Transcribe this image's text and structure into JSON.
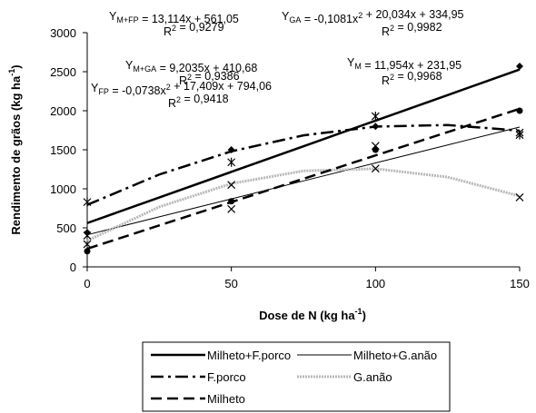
{
  "chart_data": {
    "type": "scatter",
    "x_label": {
      "text": "Dose de N (kg ha",
      "sup": "-1",
      "end": ")"
    },
    "y_label": {
      "text": "Rendimento de grãos (kg ha",
      "sup": "-1",
      "end": ")"
    },
    "x": [
      0,
      50,
      100,
      150
    ],
    "fit_x": [
      0,
      25,
      50,
      75,
      100,
      125,
      150
    ],
    "xlim": [
      0,
      150
    ],
    "xticks": [
      0,
      50,
      100,
      150
    ],
    "ylim": [
      0,
      3000
    ],
    "yticks": [
      0,
      500,
      1000,
      1500,
      2000,
      2500,
      3000
    ],
    "series": [
      {
        "name": "Milheto+F.porco",
        "color": "#000000",
        "line_style": "solid",
        "marker": "diamond",
        "values": [
          440,
          1500,
          1800,
          2570
        ],
        "fit": [
          561.05,
          888.9,
          1216.8,
          1544.6,
          1872.5,
          2200.3,
          2528.1
        ]
      },
      {
        "name": "Milheto+G.anão",
        "color": "#000000",
        "line_style": "thin",
        "marker": "cross",
        "values": [
          400,
          740,
          1550,
          1720
        ],
        "fit": [
          410.7,
          640.8,
          870.9,
          1101.0,
          1331.0,
          1561.1,
          1791.2
        ]
      },
      {
        "name": "F.porco",
        "color": "#000000",
        "line_style": "dashdot",
        "marker": "asterisk",
        "values": [
          830,
          1340,
          1930,
          1690
        ],
        "fit": [
          794.1,
          1183.2,
          1480.0,
          1684.6,
          1797.0,
          1817.1,
          1744.9
        ]
      },
      {
        "name": "G.anão",
        "color": "#b8b8b8",
        "line_style": "dotted",
        "marker": "cross",
        "values": [
          290,
          1050,
          1260,
          890
        ],
        "fit": [
          335.0,
          768.2,
          1066.4,
          1229.4,
          1257.4,
          1150.1,
          907.8
        ]
      },
      {
        "name": "Milheto",
        "color": "#000000",
        "line_style": "dashed",
        "marker": "circle",
        "values": [
          200,
          840,
          1500,
          2000
        ],
        "fit": [
          232.0,
          530.8,
          829.7,
          1128.5,
          1427.4,
          1726.2,
          2025.1
        ]
      }
    ],
    "annotations": [
      {
        "eq": [
          {
            "text": "Y"
          },
          {
            "sub": "M+FP"
          },
          {
            "text": " = 13,114x + 561,05"
          }
        ],
        "r2": [
          {
            "text": "R"
          },
          {
            "sup": "2"
          },
          {
            "text": " = 0,9279"
          }
        ]
      },
      {
        "eq": [
          {
            "text": "Y"
          },
          {
            "sub": "GA"
          },
          {
            "text": " = -0,1081x"
          },
          {
            "sup": "2"
          },
          {
            "text": " + 20,034x + 334,95"
          }
        ],
        "r2": [
          {
            "text": "R"
          },
          {
            "sup": "2"
          },
          {
            "text": " = 0,9982"
          }
        ]
      },
      {
        "eq": [
          {
            "text": "Y"
          },
          {
            "sub": "M+GA"
          },
          {
            "text": " = 9,2035x + 410,68"
          }
        ],
        "r2": [
          {
            "text": "R"
          },
          {
            "sup": "2"
          },
          {
            "text": " = 0,9386"
          }
        ]
      },
      {
        "eq": [
          {
            "text": "Y"
          },
          {
            "sub": "M"
          },
          {
            "text": " = 11,954x + 231,95"
          }
        ],
        "r2": [
          {
            "text": "R"
          },
          {
            "sup": "2"
          },
          {
            "text": " = 0,9968"
          }
        ]
      },
      {
        "eq": [
          {
            "text": "Y"
          },
          {
            "sub": "FP"
          },
          {
            "text": " = -0,0738x"
          },
          {
            "sup": "2"
          },
          {
            "text": " + 17,409x + 794,06"
          }
        ],
        "r2": [
          {
            "text": "R"
          },
          {
            "sup": "2"
          },
          {
            "text": " = 0,9418"
          }
        ]
      }
    ]
  }
}
